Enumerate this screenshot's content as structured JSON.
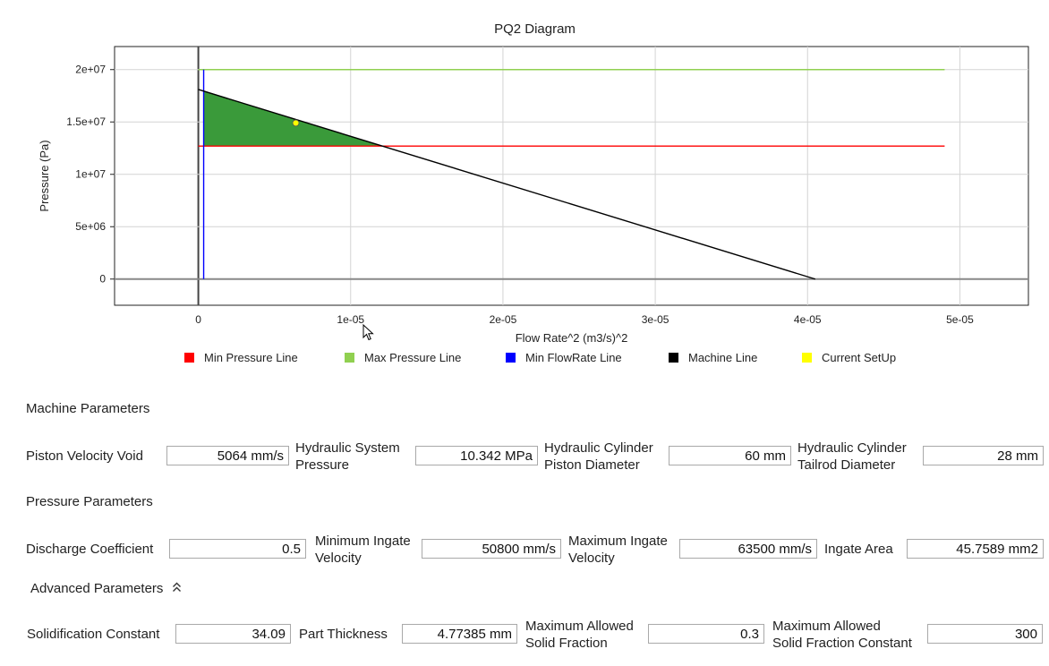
{
  "chart_data": {
    "type": "line",
    "title": "PQ2 Diagram",
    "xlabel": "Flow Rate^2 (m3/s)^2",
    "ylabel": "Pressure (Pa)",
    "xlim": [
      -5.5e-06,
      5.45e-05
    ],
    "ylim": [
      -2500000.0,
      22200000.0
    ],
    "xticks": [
      0,
      1e-05,
      2e-05,
      3e-05,
      4e-05,
      5e-05
    ],
    "xtick_labels": [
      "0",
      "1e-05",
      "2e-05",
      "3e-05",
      "4e-05",
      "5e-05"
    ],
    "yticks": [
      0,
      5000000,
      10000000,
      15000000,
      20000000
    ],
    "ytick_labels": [
      "0",
      "5e+06",
      "1e+07",
      "1.5e+07",
      "2e+07"
    ],
    "grid": true,
    "legend_position": "bottom",
    "series": [
      {
        "name": "Min Pressure Line",
        "color": "#ff0000",
        "x": [
          0,
          4.9e-05
        ],
        "y": [
          12700000,
          12700000
        ]
      },
      {
        "name": "Max Pressure Line",
        "color": "#90d050",
        "x": [
          0,
          4.9e-05
        ],
        "y": [
          20000000,
          20000000
        ]
      },
      {
        "name": "Min FlowRate Line",
        "color": "#0000ff",
        "x": [
          3.5e-07,
          3.5e-07
        ],
        "y": [
          0,
          20000000
        ]
      },
      {
        "name": "Machine Line",
        "color": "#000000",
        "x": [
          0,
          4.05e-05
        ],
        "y": [
          18100000,
          0
        ]
      },
      {
        "name": "Current SetUp",
        "color": "#ffff00",
        "x": [
          6.4e-06
        ],
        "y": [
          14900000
        ]
      }
    ],
    "operating_window": {
      "fill": "#3a9a3a",
      "polygon": [
        [
          3.5e-07,
          18000000
        ],
        [
          1.21e-05,
          12700000
        ],
        [
          3.5e-07,
          12700000
        ]
      ]
    }
  },
  "legend": [
    {
      "label": "Min Pressure Line",
      "color": "#ff0000"
    },
    {
      "label": "Max Pressure Line",
      "color": "#90d050"
    },
    {
      "label": "Min FlowRate Line",
      "color": "#0000ff"
    },
    {
      "label": "Machine Line",
      "color": "#000000"
    },
    {
      "label": "Current SetUp",
      "color": "#ffff00"
    }
  ],
  "machine": {
    "title": "Machine Parameters",
    "piston_velocity_label": "Piston Velocity Void",
    "piston_velocity_value": "5064 mm/s",
    "hydraulic_pressure_label_1": "Hydraulic System",
    "hydraulic_pressure_label_2": "Pressure",
    "hydraulic_pressure_value": "10.342 MPa",
    "piston_diameter_label_1": "Hydraulic Cylinder",
    "piston_diameter_label_2": "Piston Diameter",
    "piston_diameter_value": "60 mm",
    "tailrod_diameter_label_1": "Hydraulic Cylinder",
    "tailrod_diameter_label_2": "Tailrod Diameter",
    "tailrod_diameter_value": "28 mm"
  },
  "pressure": {
    "title": "Pressure Parameters",
    "discharge_label": "Discharge Coefficient",
    "discharge_value": "0.5",
    "min_ingate_label_1": "Minimum Ingate",
    "min_ingate_label_2": "Velocity",
    "min_ingate_value": "50800 mm/s",
    "max_ingate_label_1": "Maximum Ingate",
    "max_ingate_label_2": "Velocity",
    "max_ingate_value": "63500 mm/s",
    "ingate_area_label": "Ingate Area",
    "ingate_area_value": "45.7589 mm2"
  },
  "advanced": {
    "title": "Advanced Parameters",
    "collapse_icon": "double-chevron-up-icon",
    "solidification_label": "Solidification Constant",
    "solidification_value": "34.09",
    "thickness_label": "Part Thickness",
    "thickness_value": "4.77385 mm",
    "max_solid_label_1": "Maximum Allowed",
    "max_solid_label_2": "Solid Fraction",
    "max_solid_value": "0.3",
    "max_solid_const_label_1": "Maximum Allowed",
    "max_solid_const_label_2": "Solid Fraction Constant",
    "max_solid_const_value": "300"
  }
}
